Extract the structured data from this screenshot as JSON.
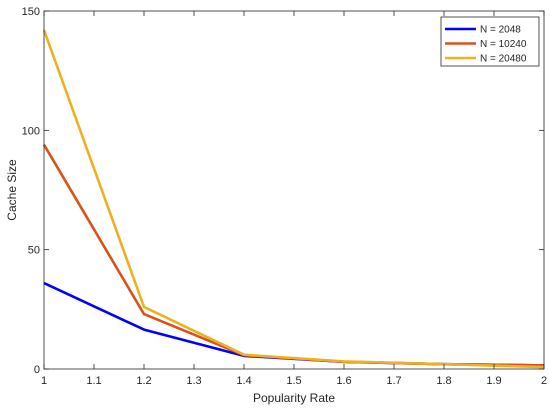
{
  "chart_data": {
    "type": "line",
    "title": "",
    "xlabel": "Popularity Rate",
    "ylabel": "Cache Size",
    "xlim": [
      1,
      2
    ],
    "ylim": [
      0,
      150
    ],
    "xticks": [
      "1",
      "1.1",
      "1.2",
      "1.3",
      "1.4",
      "1.5",
      "1.6",
      "1.7",
      "1.8",
      "1.9",
      "2"
    ],
    "yticks": [
      "0",
      "50",
      "100",
      "150"
    ],
    "grid": false,
    "legend_position": "top-right",
    "x": [
      1,
      1.2,
      1.4,
      1.6,
      1.8,
      2
    ],
    "series": [
      {
        "name": "N = 2048",
        "color": "#0000ff",
        "values": [
          36,
          16.5,
          5.5,
          3,
          2,
          1.5
        ]
      },
      {
        "name": "N = 10240",
        "color": "#d95319",
        "values": [
          94,
          23,
          5.8,
          3,
          2,
          1.5
        ]
      },
      {
        "name": "N = 20480",
        "color": "#edb120",
        "values": [
          142,
          26,
          6,
          3.2,
          2,
          0.8
        ]
      }
    ]
  }
}
